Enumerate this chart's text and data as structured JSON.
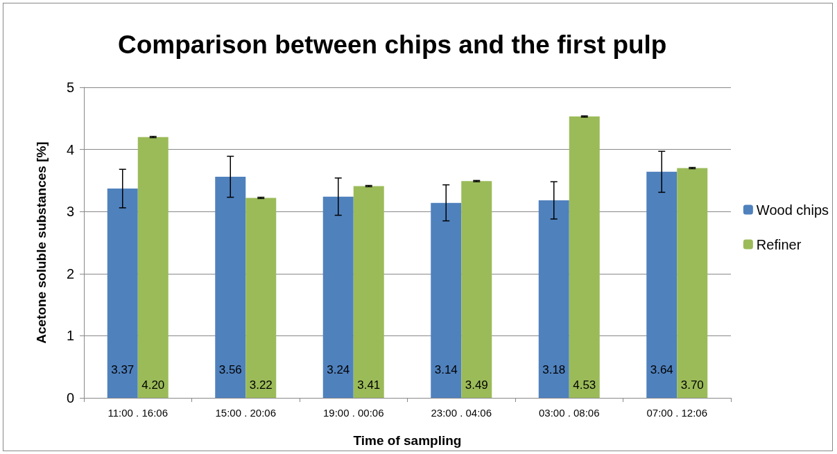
{
  "chart_data": {
    "type": "bar",
    "title": "Comparison between chips and the first pulp",
    "xlabel": "Time of sampling",
    "ylabel": "Acetone soluble substances [%]",
    "categories": [
      "11:00 . 16:06",
      "15:00 . 20:06",
      "19:00 . 00:06",
      "23:00 . 04:06",
      "03:00 . 08:06",
      "07:00 . 12:06"
    ],
    "series": [
      {
        "name": "Wood chips",
        "color": "#4f81bd",
        "values": [
          3.37,
          3.56,
          3.24,
          3.14,
          3.18,
          3.64
        ],
        "errors": [
          0.31,
          0.33,
          0.3,
          0.29,
          0.3,
          0.33
        ],
        "value_labels": [
          "3.37",
          "3.56",
          "3.24",
          "3.14",
          "3.18",
          "3.64"
        ]
      },
      {
        "name": "Refiner",
        "color": "#9bbb59",
        "values": [
          4.2,
          3.22,
          3.41,
          3.49,
          4.53,
          3.7
        ],
        "errors": [
          0.01,
          0.01,
          0.01,
          0.01,
          0.01,
          0.01
        ],
        "value_labels": [
          "4.20",
          "3.22",
          "3.41",
          "3.49",
          "4.53",
          "3.70"
        ]
      }
    ],
    "ylim": [
      0,
      5
    ],
    "yticks": [
      0,
      1,
      2,
      3,
      4,
      5
    ],
    "grid": "y",
    "legend": "right"
  }
}
